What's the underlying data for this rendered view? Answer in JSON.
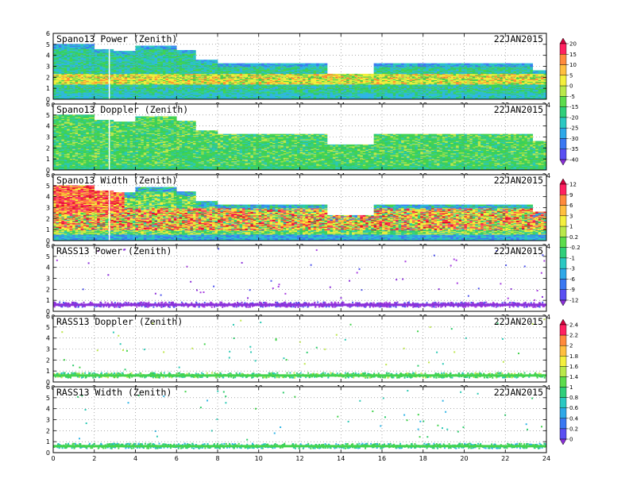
{
  "chart_data": [
    {
      "type": "heatmap",
      "title": "Spano13 Power (Zenith)",
      "date": "22JAN2015",
      "xlim": [
        0,
        24
      ],
      "ylim": [
        0,
        6
      ],
      "x_ticks": [
        "0",
        "2",
        "4",
        "6",
        "8",
        "10",
        "12",
        "14",
        "16",
        "18",
        "20",
        "22",
        "24"
      ],
      "y_ticks": [
        "0",
        "1",
        "2",
        "3",
        "4",
        "5",
        "6"
      ],
      "grid": true,
      "colorbar": {
        "name": "power",
        "levels": [
          "20",
          "15",
          "10",
          "5",
          "0",
          "-5",
          "-15",
          "-20",
          "-25",
          "-30",
          "-35",
          "-40"
        ],
        "colors": [
          "#d4003d",
          "#ff2060",
          "#ff8a3c",
          "#ffbf3f",
          "#f4ef3d",
          "#b9e84a",
          "#5cdc4c",
          "#2fcf7a",
          "#2bc8c2",
          "#2ea8e8",
          "#3a78f2",
          "#5a4ff2",
          "#8a2fd9"
        ]
      },
      "fields": {
        "top_height_profile": [
          [
            0,
            5.0
          ],
          [
            1,
            5.0
          ],
          [
            2,
            4.6
          ],
          [
            3,
            4.4
          ],
          [
            4,
            4.9
          ],
          [
            6,
            4.5
          ],
          [
            7,
            3.6
          ],
          [
            8,
            3.3
          ],
          [
            12,
            3.3
          ],
          [
            13.2,
            3.3
          ],
          [
            13.4,
            2.3
          ],
          [
            15.2,
            2.3
          ],
          [
            15.6,
            3.3
          ],
          [
            20,
            3.3
          ],
          [
            22.5,
            3.3
          ],
          [
            23.3,
            2.6
          ]
        ],
        "bright_layer_km": [
          1.2,
          2.3
        ],
        "bright_layer_color": "yellow-orange",
        "surface_band_color": "cyan-blue"
      }
    },
    {
      "type": "heatmap",
      "title": "Spano13 Doppler (Zenith)",
      "date": "22JAN2015",
      "xlim": [
        0,
        24
      ],
      "ylim": [
        0,
        6
      ],
      "x_ticks": [
        "0",
        "2",
        "4",
        "6",
        "8",
        "10",
        "12",
        "14",
        "16",
        "18",
        "20",
        "22",
        "24"
      ],
      "y_ticks": [
        "0",
        "1",
        "2",
        "3",
        "4",
        "5",
        "6"
      ],
      "grid": true,
      "colorbar": null,
      "fields": {
        "dominant_color": "green",
        "surface_band_color": "green-cyan"
      }
    },
    {
      "type": "heatmap",
      "title": "Spano13 Width (Zenith)",
      "date": "22JAN2015",
      "xlim": [
        0,
        24
      ],
      "ylim": [
        0,
        6
      ],
      "x_ticks": [
        "0",
        "2",
        "4",
        "6",
        "8",
        "10",
        "12",
        "14",
        "16",
        "18",
        "20",
        "22",
        "24"
      ],
      "y_ticks": [
        "0",
        "1",
        "2",
        "3",
        "4",
        "5",
        "6"
      ],
      "grid": true,
      "colorbar": {
        "name": "width",
        "levels": [
          "12",
          "9",
          "6",
          "3",
          "1",
          "0.2",
          "-0.2",
          "-1",
          "-3",
          "-6",
          "-9",
          "-12"
        ],
        "colors": [
          "#d4003d",
          "#ff2060",
          "#ff8a3c",
          "#ffbf3f",
          "#f4ef3d",
          "#b9e84a",
          "#5cdc4c",
          "#2fcf7a",
          "#2bc8c2",
          "#2ea8e8",
          "#3a78f2",
          "#5a4ff2",
          "#8a2fd9"
        ]
      },
      "fields": {
        "turbulent_layer_km": [
          0.9,
          2.9
        ],
        "turbulent_layer_color": "red-orange-yellow",
        "surface_band_color": "cyan-blue"
      }
    },
    {
      "type": "scatter",
      "title": "RASS13 Power (Zenith)",
      "date": "22JAN2015",
      "xlim": [
        0,
        24
      ],
      "ylim": [
        0,
        6
      ],
      "x_ticks": [
        "0",
        "2",
        "4",
        "6",
        "8",
        "10",
        "12",
        "14",
        "16",
        "18",
        "20",
        "22",
        "24"
      ],
      "y_ticks": [
        "0",
        "1",
        "2",
        "3",
        "4",
        "5",
        "6"
      ],
      "grid": true,
      "colorbar": null,
      "fields": {
        "main_band_km": [
          0.45,
          0.95
        ],
        "point_color": "purple"
      }
    },
    {
      "type": "scatter",
      "title": "RASS13 Doppler (Zenith)",
      "date": "22JAN2015",
      "xlim": [
        0,
        24
      ],
      "ylim": [
        0,
        6
      ],
      "x_ticks": [
        "0",
        "2",
        "4",
        "6",
        "8",
        "10",
        "12",
        "14",
        "16",
        "18",
        "20",
        "22",
        "24"
      ],
      "y_ticks": [
        "0",
        "1",
        "2",
        "3",
        "4",
        "5",
        "6"
      ],
      "grid": true,
      "colorbar": {
        "name": "rass",
        "levels": [
          "2.4",
          "2.2",
          "2",
          "1.8",
          "1.6",
          "1.4",
          "1",
          "0.8",
          "0.6",
          "0.4",
          "0.2",
          "0"
        ],
        "colors": [
          "#d4003d",
          "#ff2060",
          "#ff8a3c",
          "#ffbf3f",
          "#f4ef3d",
          "#b9e84a",
          "#5cdc4c",
          "#2fcf7a",
          "#2bc8c2",
          "#2ea8e8",
          "#3a78f2",
          "#5a4ff2",
          "#8a2fd9"
        ]
      },
      "fields": {
        "main_band_km": [
          0.45,
          0.95
        ],
        "point_color": "green"
      }
    },
    {
      "type": "scatter",
      "title": "RASS13 Width (Zenith)",
      "date": "22JAN2015",
      "xlim": [
        0,
        24
      ],
      "ylim": [
        0,
        6
      ],
      "x_ticks": [
        "0",
        "2",
        "4",
        "6",
        "8",
        "10",
        "12",
        "14",
        "16",
        "18",
        "20",
        "22",
        "24"
      ],
      "y_ticks": [
        "0",
        "1",
        "2",
        "3",
        "4",
        "5",
        "6"
      ],
      "grid": true,
      "colorbar": null,
      "fields": {
        "main_band_km": [
          0.45,
          0.9
        ],
        "point_color": "green-cyan"
      }
    }
  ]
}
